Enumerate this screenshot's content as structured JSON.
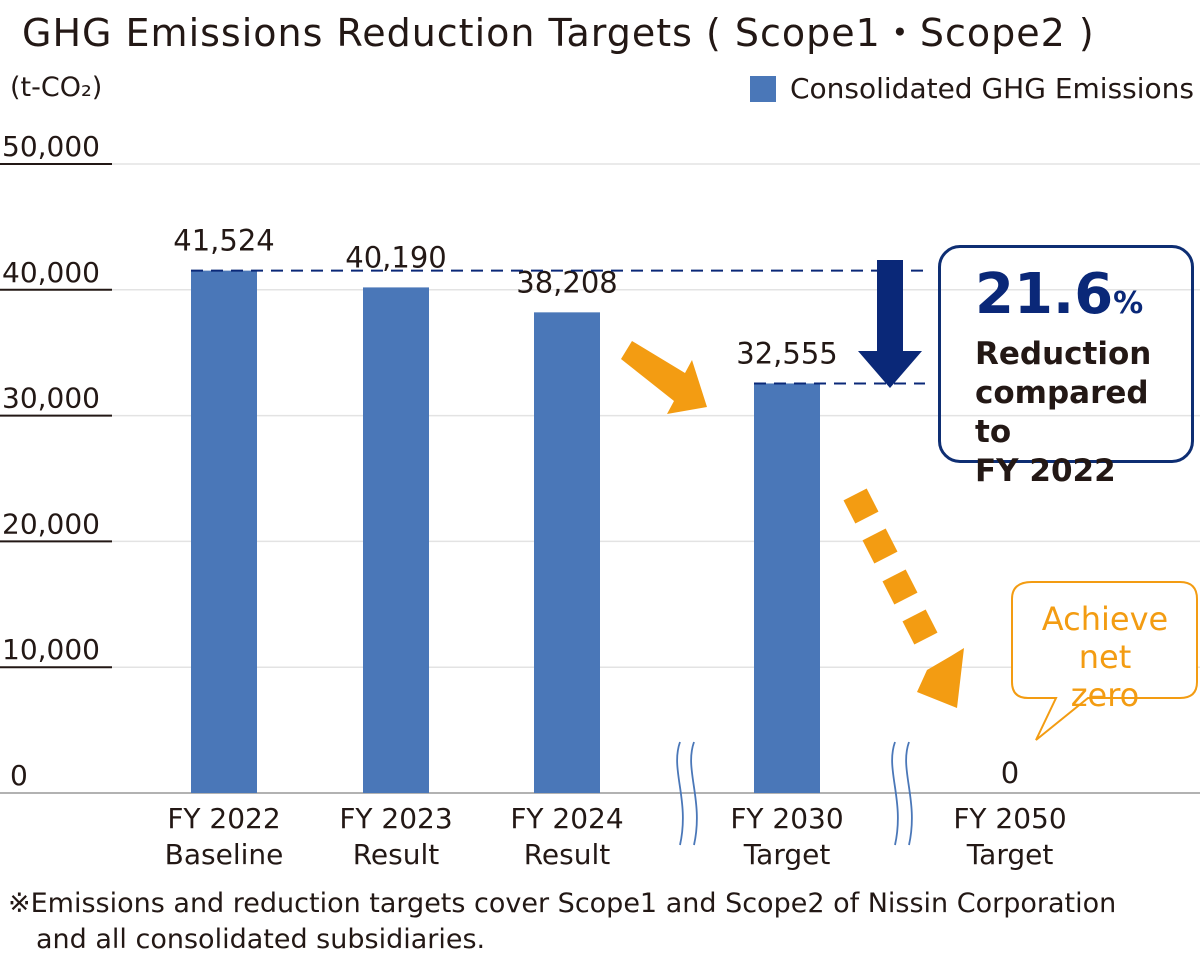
{
  "chart_data": {
    "type": "bar",
    "title": "GHG Emissions Reduction Targets ( Scope1・Scope2 )",
    "ylabel": "(t-CO₂)",
    "ylim": [
      0,
      50000
    ],
    "yticks": [
      "0",
      "10,000",
      "20,000",
      "30,000",
      "40,000",
      "50,000"
    ],
    "grid": true,
    "legend_position": "top-right",
    "categories": [
      {
        "line1": "FY 2022",
        "line2": "Baseline"
      },
      {
        "line1": "FY 2023",
        "line2": "Result"
      },
      {
        "line1": "FY 2024",
        "line2": "Result"
      },
      {
        "line1": "FY 2030",
        "line2": "Target"
      },
      {
        "line1": "FY 2050",
        "line2": "Target"
      }
    ],
    "series": [
      {
        "name": "Consolidated GHG Emissions",
        "values": [
          41524,
          40190,
          38208,
          32555,
          0
        ],
        "labels": [
          "41,524",
          "40,190",
          "38,208",
          "32,555",
          "0"
        ],
        "color": "#4a77b8"
      }
    ],
    "annotations": {
      "reduction_value": "21.6",
      "reduction_unit": "%",
      "reduction_text": [
        "Reduction",
        "compared to",
        "FY 2022"
      ],
      "net_zero": [
        "Achieve",
        "net zero"
      ],
      "arrow_color": "#f39c12",
      "dark_arrow_color": "#0a2878"
    },
    "footnote": [
      "※Emissions and reduction targets cover Scope1 and Scope2 of Nissin Corporation",
      "and all consolidated subsidiaries."
    ]
  }
}
